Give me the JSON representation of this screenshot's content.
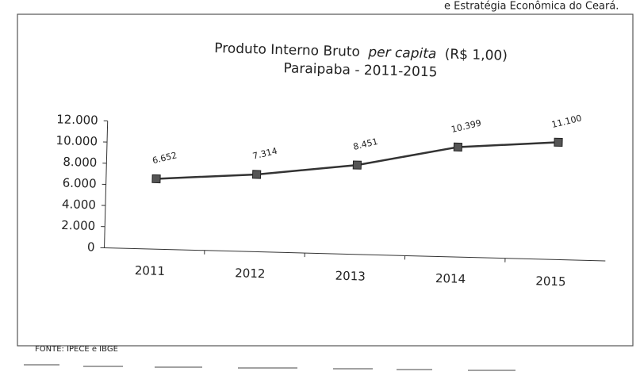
{
  "page_header": "e Estratégia Econômica do Ceará.",
  "source": "FONTE: IPECE e IBGE",
  "chart_data": {
    "type": "line",
    "title": [
      "Produto Interno Bruto",
      "per capita",
      "(R$ 1,00)"
    ],
    "subtitle": "Paraipaba - 2011-2015",
    "categories": [
      "2011",
      "2012",
      "2013",
      "2014",
      "2015"
    ],
    "series": [
      {
        "name": "PIB per capita",
        "color": "#333333",
        "values": [
          6652,
          7314,
          8451,
          10399,
          11100
        ],
        "value_labels": [
          "6.652",
          "7.314",
          "8.451",
          "10.399",
          "11.100"
        ]
      }
    ],
    "ylim": [
      0,
      12000
    ],
    "yticks": [
      0,
      {
        "value": 2000,
        "label": "2.000"
      },
      {
        "value": 4000,
        "label": "4.000"
      },
      {
        "value": 6000,
        "label": "6.000"
      },
      {
        "value": 8000,
        "label": "8.000"
      },
      {
        "value": 10000,
        "label": "10.000"
      },
      {
        "value": 12000,
        "label": "12.000"
      }
    ],
    "grid": false
  }
}
